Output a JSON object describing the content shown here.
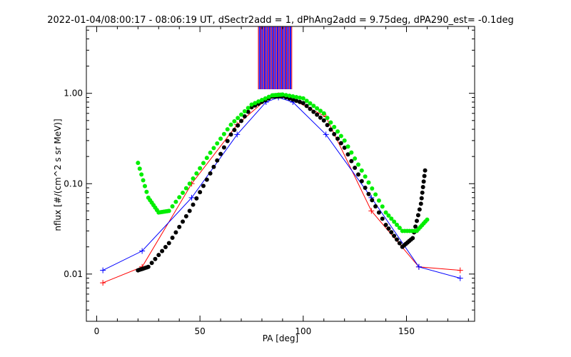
{
  "chart_data": {
    "type": "line",
    "title": "2022-01-04/08:00:17 - 08:06:19 UT, dSectr2add = 1, dPhAng2add = 9.75deg, dPA290_est=  -0.1deg",
    "xlabel": "PA [deg]",
    "ylabel": "nflux [#/(cm^2 s sr MeV)]",
    "xlim": [
      -5,
      183
    ],
    "ylim": [
      0.003,
      5.5
    ],
    "yscale": "log",
    "grid": false,
    "xticks": [
      {
        "value": 0,
        "label": "0"
      },
      {
        "value": 50,
        "label": "50"
      },
      {
        "value": 100,
        "label": "100"
      },
      {
        "value": 150,
        "label": "150"
      }
    ],
    "yticks": [
      {
        "value": 0.01,
        "label": "0.01"
      },
      {
        "value": 0.1,
        "label": "0.10"
      },
      {
        "value": 1.0,
        "label": "1.00"
      }
    ],
    "colors": {
      "red_series": "#ff0000",
      "blue_series": "#0000ff",
      "fit_black": "#000000",
      "fit_green": "#00ee00"
    },
    "series": [
      {
        "color": "#ff0000",
        "marker": "+",
        "x": [
          3,
          22,
          46,
          68,
          82,
          88,
          95,
          111,
          133,
          156,
          176
        ],
        "y": [
          0.008,
          0.012,
          0.1,
          0.45,
          0.85,
          0.95,
          0.85,
          0.55,
          0.05,
          0.012,
          0.011
        ]
      },
      {
        "color": "#0000ff",
        "marker": "+",
        "x": [
          3,
          22,
          46,
          68,
          82,
          88,
          95,
          111,
          133,
          156,
          176
        ],
        "y": [
          0.011,
          0.018,
          0.07,
          0.35,
          0.8,
          0.9,
          0.8,
          0.35,
          0.07,
          0.012,
          0.009
        ]
      },
      {
        "color": "#000000",
        "marker": "dot",
        "x": [
          20,
          25,
          35,
          45,
          55,
          65,
          75,
          85,
          90,
          100,
          110,
          120,
          130,
          140,
          148,
          153,
          157,
          159
        ],
        "y": [
          0.011,
          0.012,
          0.022,
          0.05,
          0.13,
          0.35,
          0.7,
          0.92,
          0.93,
          0.78,
          0.5,
          0.25,
          0.09,
          0.035,
          0.02,
          0.025,
          0.06,
          0.14
        ]
      },
      {
        "color": "#00ee00",
        "marker": "dot",
        "x": [
          20,
          25,
          30,
          35,
          45,
          55,
          65,
          75,
          85,
          90,
          100,
          110,
          120,
          130,
          140,
          148,
          155,
          160
        ],
        "y": [
          0.17,
          0.07,
          0.048,
          0.05,
          0.1,
          0.22,
          0.45,
          0.75,
          0.95,
          0.97,
          0.88,
          0.6,
          0.3,
          0.12,
          0.048,
          0.03,
          0.03,
          0.04
        ]
      }
    ]
  }
}
